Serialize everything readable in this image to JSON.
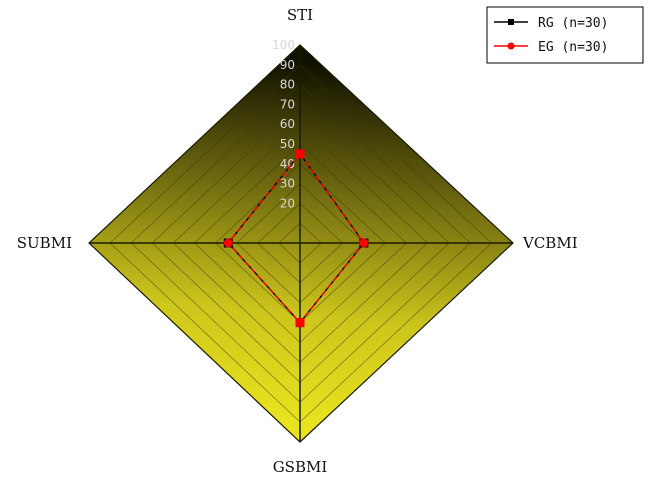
{
  "chart_data": {
    "type": "radar",
    "axes": [
      "STI",
      "VCBMI",
      "GSBMI",
      "SUBMI"
    ],
    "ticks": [
      "20",
      "30",
      "40",
      "50",
      "60",
      "70",
      "80",
      "90",
      "100"
    ],
    "range": [
      0,
      100
    ],
    "legend_position": "top-right",
    "series": [
      {
        "name": "RG (n=30)",
        "color": "#000000",
        "marker": "square",
        "values": [
          45,
          30,
          40,
          34
        ]
      },
      {
        "name": "EG (n=30)",
        "color": "#ff0000",
        "marker": "circle",
        "values": [
          45,
          30,
          40,
          34
        ]
      }
    ],
    "background_gradient": [
      "#111100",
      "#e6e01e"
    ]
  }
}
